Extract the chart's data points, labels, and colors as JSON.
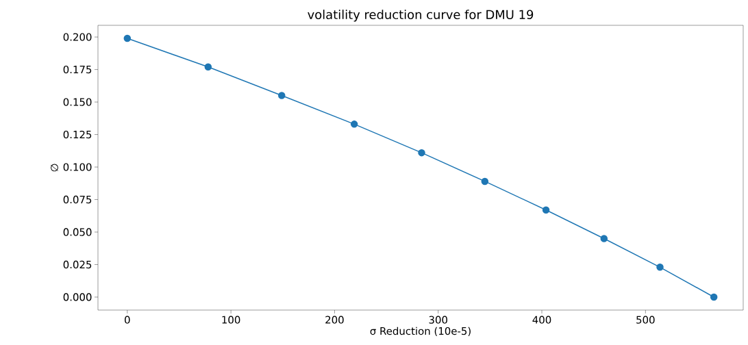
{
  "chart_data": {
    "type": "line",
    "title": "volatility reduction curve for DMU 19",
    "xlabel": "σ Reduction (10e-5)",
    "ylabel": "∅",
    "x": [
      0,
      78,
      149,
      219,
      284,
      345,
      404,
      460,
      514,
      566
    ],
    "series": [
      {
        "color": "#1f77b4",
        "values": [
          0.199,
          0.177,
          0.155,
          0.133,
          0.111,
          0.089,
          0.067,
          0.045,
          0.023,
          0.0
        ]
      }
    ],
    "xlim": [
      -28.3,
      594.3
    ],
    "ylim": [
      -0.01,
      0.209
    ],
    "xticks": [
      0,
      100,
      200,
      300,
      400,
      500
    ],
    "yticks": [
      {
        "value": 0,
        "label": "0.000"
      },
      {
        "value": 0.025,
        "label": "0.025"
      },
      {
        "value": 0.05,
        "label": "0.050"
      },
      {
        "value": 0.075,
        "label": "0.075"
      },
      {
        "value": 0.1,
        "label": "0.100"
      },
      {
        "value": 0.125,
        "label": "0.125"
      },
      {
        "value": 0.15,
        "label": "0.150"
      },
      {
        "value": 0.175,
        "label": "0.175"
      },
      {
        "value": 0.2,
        "label": "0.200"
      }
    ],
    "marker": "circle",
    "line_style": "solid"
  }
}
